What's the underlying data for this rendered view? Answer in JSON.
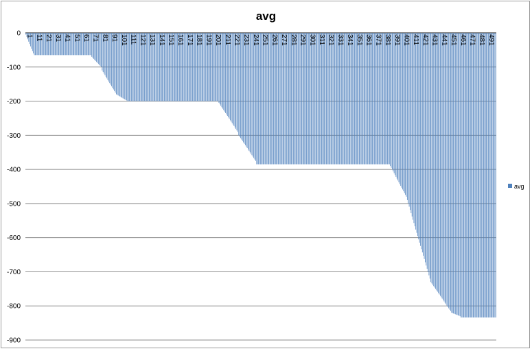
{
  "chart_data": {
    "type": "bar",
    "title": "avg",
    "xlabel": "",
    "ylabel": "",
    "ylim": [
      -900,
      0
    ],
    "yticks": [
      0,
      -100,
      -200,
      -300,
      -400,
      -500,
      -600,
      -700,
      -800,
      -900
    ],
    "grid": true,
    "legend": "right",
    "category_count": 500,
    "tick_every": 10,
    "series": [
      {
        "name": "avg",
        "color": "#4f81bd",
        "segments": [
          {
            "from": 1,
            "to": 9,
            "start": -5,
            "end": -60
          },
          {
            "from": 10,
            "to": 70,
            "start": -65,
            "end": -65
          },
          {
            "from": 71,
            "to": 81,
            "start": -70,
            "end": -100
          },
          {
            "from": 82,
            "to": 96,
            "start": -110,
            "end": -175
          },
          {
            "from": 97,
            "to": 108,
            "start": -180,
            "end": -198
          },
          {
            "from": 109,
            "to": 205,
            "start": -200,
            "end": -200
          },
          {
            "from": 206,
            "to": 226,
            "start": -205,
            "end": -290
          },
          {
            "from": 227,
            "to": 245,
            "start": -300,
            "end": -375
          },
          {
            "from": 246,
            "to": 387,
            "start": -385,
            "end": -385
          },
          {
            "from": 388,
            "to": 405,
            "start": -390,
            "end": -480
          },
          {
            "from": 406,
            "to": 430,
            "start": -490,
            "end": -720
          },
          {
            "from": 431,
            "to": 452,
            "start": -730,
            "end": -815
          },
          {
            "from": 453,
            "to": 462,
            "start": -820,
            "end": -830
          },
          {
            "from": 463,
            "to": 500,
            "start": -834,
            "end": -834
          }
        ]
      }
    ]
  }
}
